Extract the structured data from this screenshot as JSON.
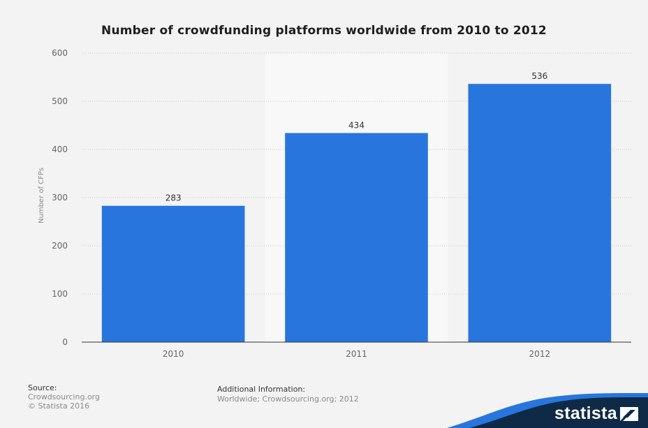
{
  "chart_data": {
    "type": "bar",
    "title": "Number of crowdfunding platforms worldwide from 2010 to 2012",
    "ylabel": "Number of CFPs",
    "xlabel": "",
    "categories": [
      "2010",
      "2011",
      "2012"
    ],
    "values": [
      283,
      434,
      536
    ],
    "ylim": [
      0,
      600
    ],
    "yticks": [
      0,
      100,
      200,
      300,
      400,
      500,
      600
    ],
    "grid": true,
    "bar_color": "#2876dd"
  },
  "footer": {
    "source_label": "Source:",
    "source_lines": [
      "Crowdsourcing.org",
      "© Statista 2016"
    ],
    "info_label": "Additional Information:",
    "info_text": "Worldwide; Crowdsourcing.org; 2012"
  },
  "brand": {
    "name": "statista",
    "color": "#0e2a47"
  }
}
